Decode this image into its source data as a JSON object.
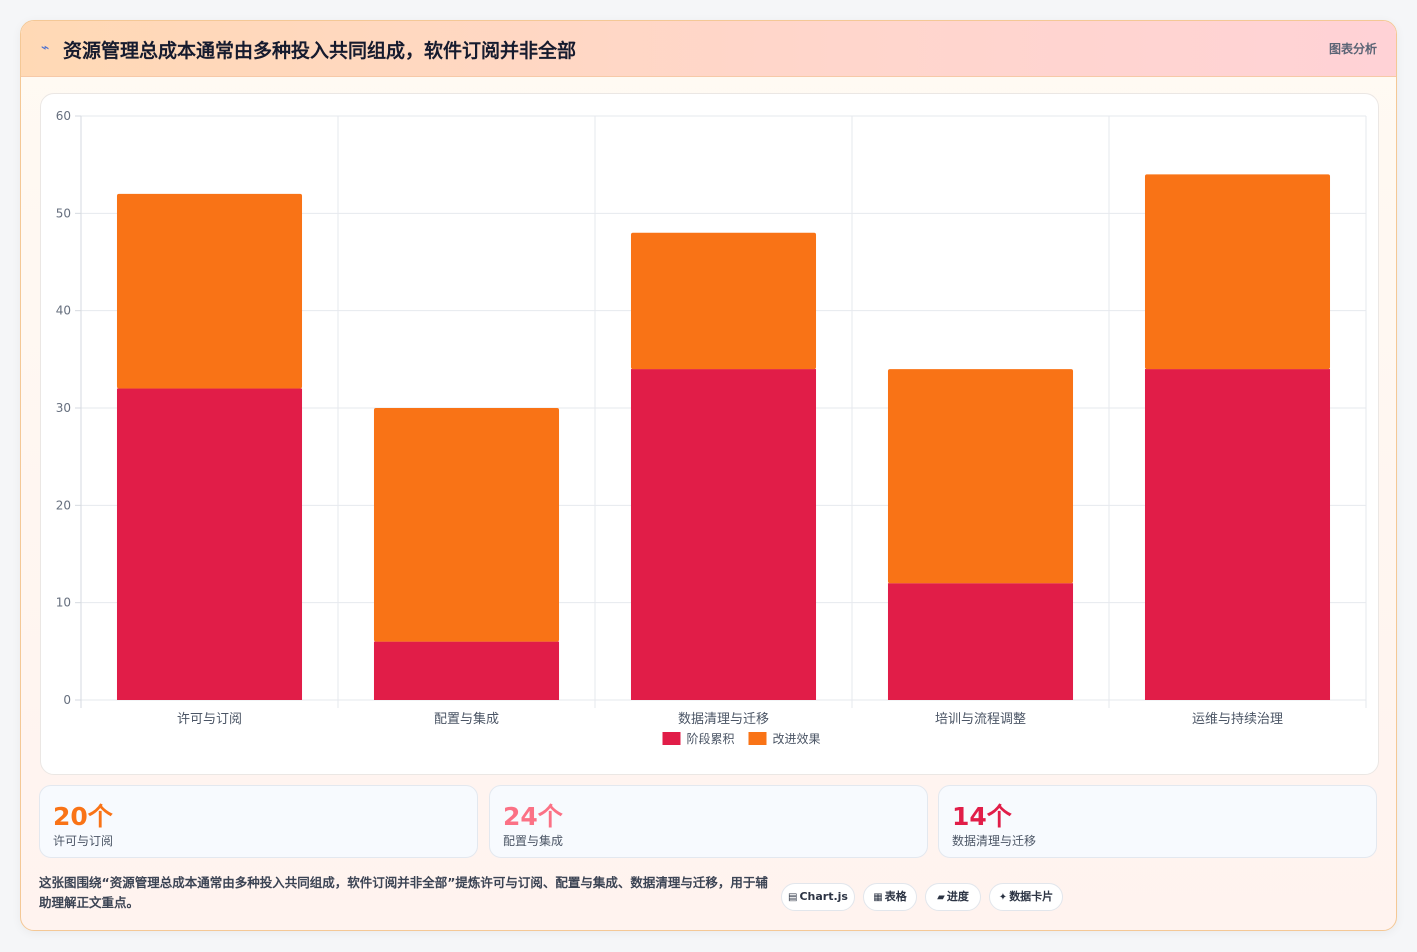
{
  "header": {
    "icon": "chart-line-icon",
    "title": "资源管理总成本通常由多种投入共同组成，软件订阅并非全部",
    "tag": "图表分析"
  },
  "chart_data": {
    "type": "bar",
    "stacked": true,
    "categories": [
      "许可与订阅",
      "配置与集成",
      "数据清理与迁移",
      "培训与流程调整",
      "运维与持续治理"
    ],
    "series": [
      {
        "name": "阶段累积",
        "color": "#e11d48",
        "values": [
          32,
          6,
          34,
          12,
          34
        ]
      },
      {
        "name": "改进效果",
        "color": "#f97316",
        "values": [
          20,
          24,
          14,
          22,
          20
        ]
      }
    ],
    "ylim": [
      0,
      60
    ],
    "yticks": [
      0,
      10,
      20,
      30,
      40,
      50,
      60
    ],
    "grid": true,
    "legend": "bottom"
  },
  "stats": [
    {
      "value": "20个",
      "label": "许可与订阅",
      "color": "#f97316"
    },
    {
      "value": "24个",
      "label": "配置与集成",
      "color": "#fb7185"
    },
    {
      "value": "14个",
      "label": "数据清理与迁移",
      "color": "#e11d48"
    }
  ],
  "description": "这张图围绕“资源管理总成本通常由多种投入共同组成，软件订阅并非全部”提炼许可与订阅、配置与集成、数据清理与迁移，用于辅助理解正文重点。",
  "chips": [
    {
      "icon": "chart-icon",
      "label": "Chart.js"
    },
    {
      "icon": "table-icon",
      "label": "表格"
    },
    {
      "icon": "progress-icon",
      "label": "进度"
    },
    {
      "icon": "sparkle-icon",
      "label": "数据卡片"
    }
  ]
}
